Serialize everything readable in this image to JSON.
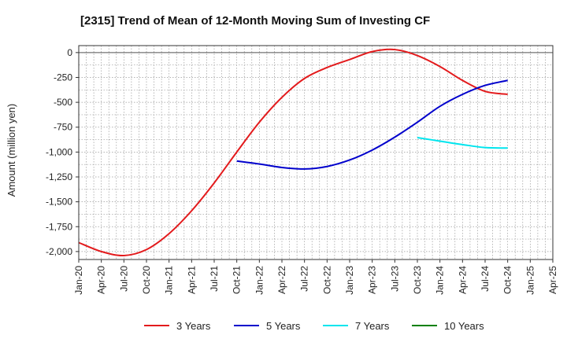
{
  "chart_data": {
    "type": "line",
    "title": "[2315]  Trend of Mean of 12-Month Moving Sum of Investing CF",
    "xlabel": "",
    "ylabel": "Amount (million yen)",
    "ylim": [
      -2080,
      70
    ],
    "yticks": [
      0,
      -250,
      -500,
      -750,
      -1000,
      -1250,
      -1500,
      -1750,
      -2000
    ],
    "ytick_labels": [
      "0",
      "-250",
      "-500",
      "-750",
      "-1,000",
      "-1,250",
      "-1,500",
      "-1,750",
      "-2,000"
    ],
    "xticks": [
      "Jan-20",
      "Apr-20",
      "Jul-20",
      "Oct-20",
      "Jan-21",
      "Apr-21",
      "Jul-21",
      "Oct-21",
      "Jan-22",
      "Apr-22",
      "Jul-22",
      "Oct-22",
      "Jan-23",
      "Apr-23",
      "Jul-23",
      "Oct-23",
      "Jan-24",
      "Apr-24",
      "Jul-24",
      "Oct-24",
      "Jan-25",
      "Apr-25"
    ],
    "grid": true,
    "legend_position": "bottom",
    "series": [
      {
        "name": "3 Years",
        "color": "#e31a1c",
        "points": [
          [
            "Jan-20",
            -1910
          ],
          [
            "Apr-20",
            -2000
          ],
          [
            "Jul-20",
            -2040
          ],
          [
            "Oct-20",
            -1980
          ],
          [
            "Jan-21",
            -1820
          ],
          [
            "Apr-21",
            -1590
          ],
          [
            "Jul-21",
            -1310
          ],
          [
            "Oct-21",
            -1000
          ],
          [
            "Jan-22",
            -700
          ],
          [
            "Apr-22",
            -450
          ],
          [
            "Jul-22",
            -260
          ],
          [
            "Oct-22",
            -150
          ],
          [
            "Jan-23",
            -70
          ],
          [
            "Apr-23",
            10
          ],
          [
            "Jul-23",
            30
          ],
          [
            "Oct-23",
            -30
          ],
          [
            "Jan-24",
            -140
          ],
          [
            "Apr-24",
            -280
          ],
          [
            "Jul-24",
            -390
          ],
          [
            "Oct-24",
            -420
          ]
        ]
      },
      {
        "name": "5 Years",
        "color": "#0000cc",
        "points": [
          [
            "Oct-21",
            -1090
          ],
          [
            "Jan-22",
            -1120
          ],
          [
            "Apr-22",
            -1155
          ],
          [
            "Jul-22",
            -1170
          ],
          [
            "Oct-22",
            -1145
          ],
          [
            "Jan-23",
            -1080
          ],
          [
            "Apr-23",
            -980
          ],
          [
            "Jul-23",
            -850
          ],
          [
            "Oct-23",
            -700
          ],
          [
            "Jan-24",
            -540
          ],
          [
            "Apr-24",
            -420
          ],
          [
            "Jul-24",
            -330
          ],
          [
            "Oct-24",
            -280
          ]
        ]
      },
      {
        "name": "7 Years",
        "color": "#00e5ee",
        "points": [
          [
            "Oct-23",
            -855
          ],
          [
            "Jan-24",
            -890
          ],
          [
            "Apr-24",
            -925
          ],
          [
            "Jul-24",
            -955
          ],
          [
            "Oct-24",
            -960
          ]
        ]
      },
      {
        "name": "10 Years",
        "color": "#008000",
        "points": []
      }
    ]
  }
}
